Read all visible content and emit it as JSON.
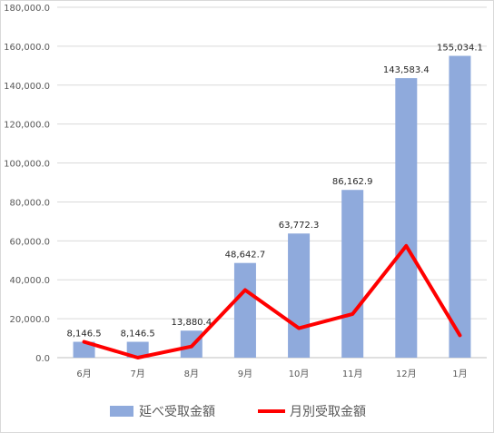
{
  "chart_data": {
    "type": "bar",
    "categories": [
      "6月",
      "7月",
      "8月",
      "9月",
      "10月",
      "11月",
      "12月",
      "1月"
    ],
    "series": [
      {
        "name": "延べ受取金額",
        "kind": "bar",
        "color": "#8faadc",
        "values": [
          8146.5,
          8146.5,
          13880.4,
          48642.7,
          63772.3,
          86162.9,
          143583.4,
          155034.1
        ],
        "labels": [
          "8,146.5",
          "8,146.5",
          "13,880.4",
          "48,642.7",
          "63,772.3",
          "86,162.9",
          "143,583.4",
          "155,034.1"
        ]
      },
      {
        "name": "月別受取金額",
        "kind": "line",
        "color": "#ff0000",
        "values": [
          8146.5,
          0,
          5733.9,
          34762.3,
          15129.6,
          22390.6,
          57420.5,
          11450.7
        ]
      }
    ],
    "ylim": [
      0,
      180000
    ],
    "yticks": [
      0,
      20000,
      40000,
      60000,
      80000,
      100000,
      120000,
      140000,
      160000,
      180000
    ],
    "ytick_labels": [
      "0.0",
      "20,000.0",
      "40,000.0",
      "60,000.0",
      "80,000.0",
      "100,000.0",
      "120,000.0",
      "140,000.0",
      "160,000.0",
      "180,000.0"
    ],
    "grid": true,
    "legend": "bottom",
    "title": "",
    "xlabel": "",
    "ylabel": ""
  }
}
